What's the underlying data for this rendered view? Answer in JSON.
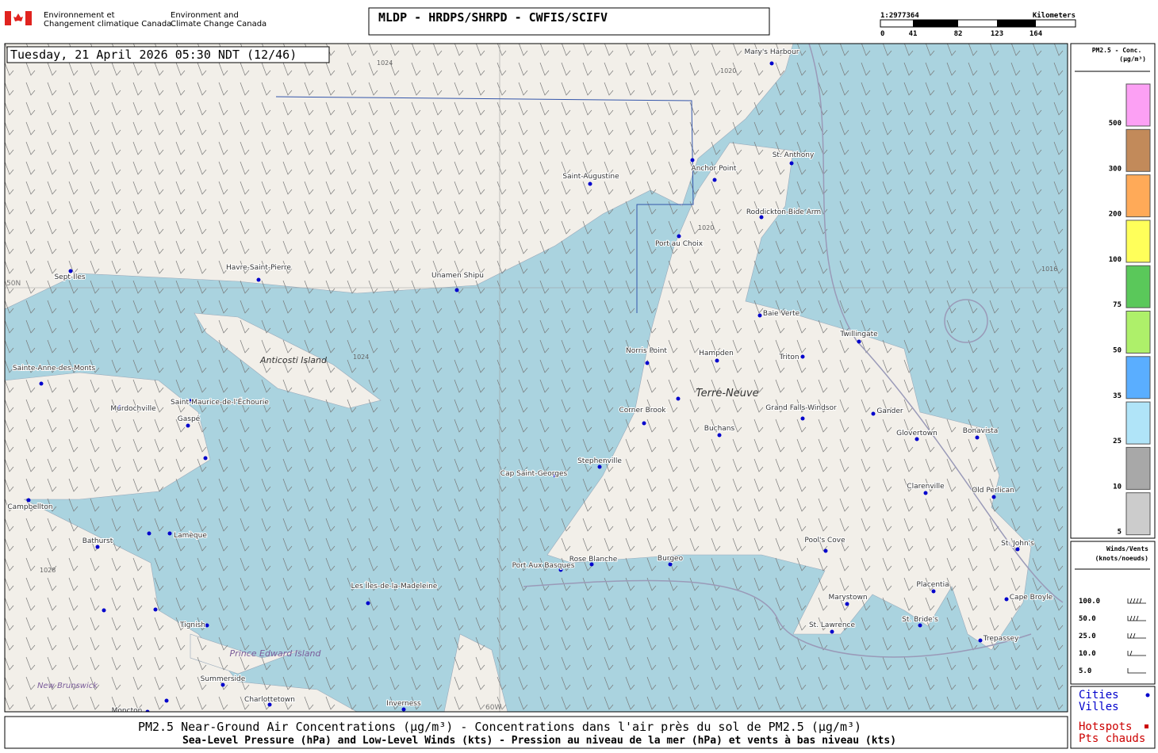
{
  "header": {
    "org_fr": [
      "Environnement et",
      "Changement climatique Canada"
    ],
    "org_en": [
      "Environment and",
      "Climate Change Canada"
    ],
    "title": "MLDP - HRDPS/SHRPD - CWFIS/SCIFV"
  },
  "scale": {
    "ratio": "1:2977364",
    "unit": "Kilometers",
    "ticks": [
      "0",
      "41",
      "82",
      "123",
      "164"
    ]
  },
  "timestamp": "Tuesday, 21 April 2026 05:30 NDT (12/46)",
  "map": {
    "cities": [
      "Mary's Harbour",
      "St. Anthony",
      "Anchor Point",
      "Saint-Augustine",
      "Roddickton-Bide Arm",
      "Port au Choix",
      "Sept-Îles",
      "Havre-Saint-Pierre",
      "Unamen Shipu",
      "Baie Verte",
      "Twillingate",
      "Norris Point",
      "Hampden",
      "Triton",
      "Sainte-Anne-des-Monts",
      "Saint-Maurice-de-l'Échourie",
      "Murdochville",
      "Gaspé",
      "Corner Brook",
      "Grand Falls-Windsor",
      "Gander",
      "Buchans",
      "Glovertown",
      "Bonavista",
      "Stephenville",
      "Cap Saint-Georges",
      "Campbellton",
      "Clarenville",
      "Old Perlican",
      "Bathurst",
      "Lamèque",
      "St. John's",
      "Pool's Cove",
      "Port Aux Basques",
      "Rose Blanche",
      "Burgeo",
      "Les Îles-de-la-Madeleine",
      "Placentia",
      "Marystown",
      "Cape Broyle",
      "Tignish",
      "St. Lawrence",
      "St. Bride's",
      "Trepassey",
      "Summerside",
      "Charlottetown",
      "Inverness",
      "Moncton"
    ],
    "regions": [
      "Terre-Neuve",
      "Anticosti Island",
      "Prince Edward Island",
      "New Brunswick"
    ],
    "grid_labels": [
      "50N",
      "60W"
    ],
    "isobars": [
      "1024",
      "1020",
      "1020",
      "1016",
      "1028",
      "1024"
    ]
  },
  "pm_legend": {
    "title": [
      "PM2.5 - Conc.",
      "(µg/m³)"
    ],
    "levels": [
      {
        "value": 500,
        "color": "#fca0f4"
      },
      {
        "value": 300,
        "color": "#c28a5a"
      },
      {
        "value": 200,
        "color": "#ffaa58"
      },
      {
        "value": 100,
        "color": "#ffff5a"
      },
      {
        "value": 75,
        "color": "#5ac85a"
      },
      {
        "value": 50,
        "color": "#aef06a"
      },
      {
        "value": 35,
        "color": "#5aaeff"
      },
      {
        "value": 25,
        "color": "#b0e4f8"
      },
      {
        "value": 10,
        "color": "#a8a8a8"
      },
      {
        "value": 5,
        "color": "#cccccc"
      }
    ]
  },
  "wind_legend": {
    "title": [
      "Winds/Vents",
      "(knots/noeuds)"
    ],
    "levels": [
      "100.0",
      "50.0",
      "25.0",
      "10.0",
      "5.0"
    ]
  },
  "points_legend": {
    "cities": [
      "Cities",
      "Villes"
    ],
    "hotspots": [
      "Hotspots",
      "Pts chauds"
    ]
  },
  "caption": [
    "PM2.5 Near-Ground Air Concentrations (µg/m³) - Concentrations dans l'air près du sol de PM2.5 (µg/m³)",
    "Sea-Level Pressure (hPa) and Low-Level Winds (kts) - Pression au niveau de la mer (hPa) et vents à bas niveau (kts)"
  ]
}
